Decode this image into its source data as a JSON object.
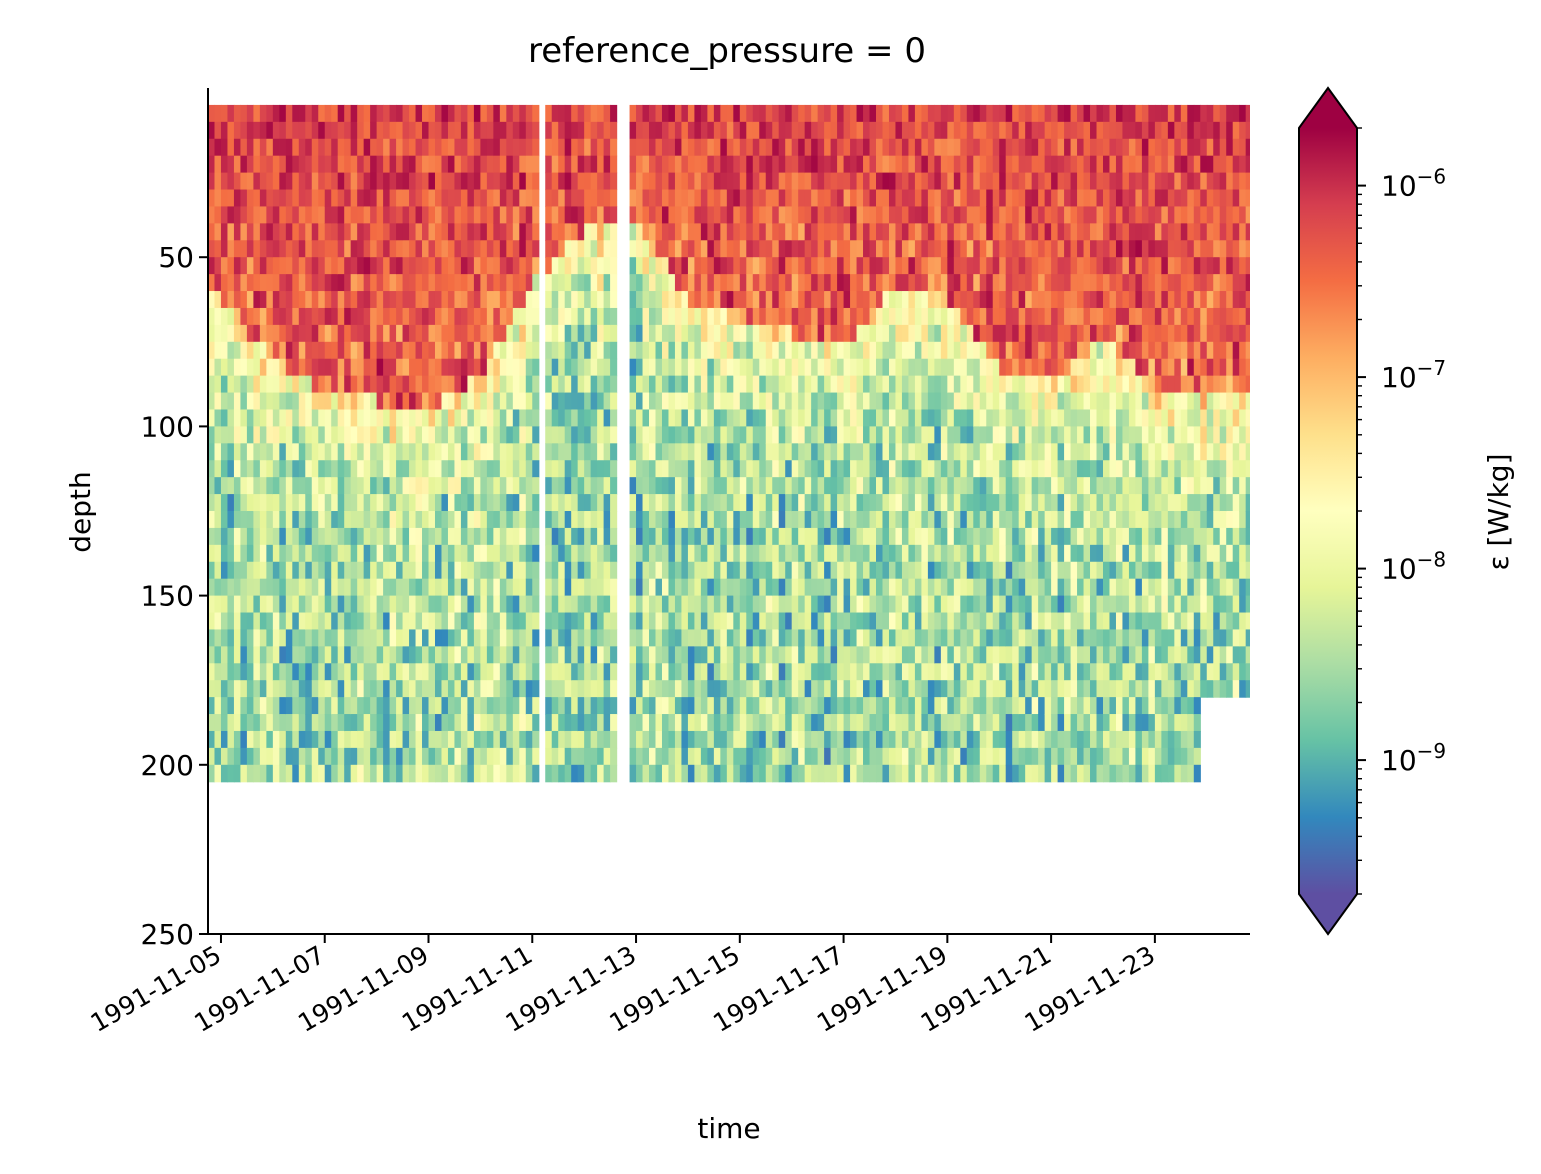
{
  "chart_data": {
    "type": "heatmap",
    "title": "reference_pressure = 0",
    "xlabel": "time",
    "ylabel": "depth",
    "colorbar_label": "ε [W/kg]",
    "colormap": "Spectral_r",
    "colormap_colors": [
      "#5e4fa2",
      "#3288bd",
      "#66c2a5",
      "#abdda4",
      "#e6f598",
      "#ffffbf",
      "#fee08b",
      "#fdae61",
      "#f46d43",
      "#d53e4f",
      "#9e0142"
    ],
    "color_scale": "log",
    "color_range": [
      2e-10,
      2e-06
    ],
    "colorbar_extend": "both",
    "colorbar_ticks": [
      {
        "value": 1e-09,
        "label": "10",
        "exp": "−9"
      },
      {
        "value": 1e-08,
        "label": "10",
        "exp": "−8"
      },
      {
        "value": 1e-07,
        "label": "10",
        "exp": "−7"
      },
      {
        "value": 1e-06,
        "label": "10",
        "exp": "−6"
      }
    ],
    "xlim": [
      "1991-11-04T18:00",
      "1991-11-24T20:00"
    ],
    "x_ticks": [
      "1991-11-05",
      "1991-11-07",
      "1991-11-09",
      "1991-11-11",
      "1991-11-13",
      "1991-11-15",
      "1991-11-17",
      "1991-11-19",
      "1991-11-21",
      "1991-11-23"
    ],
    "ylim": [
      250,
      0
    ],
    "y_inverted": true,
    "y_ticks": [
      50,
      100,
      150,
      200
    ],
    "y_tick_extra": 250,
    "data_top_depth": 5,
    "mixed_layer_depth_m": [
      {
        "date": "1991-11-05",
        "mld": 60
      },
      {
        "date": "1991-11-06",
        "mld": 78
      },
      {
        "date": "1991-11-07",
        "mld": 88
      },
      {
        "date": "1991-11-08",
        "mld": 90
      },
      {
        "date": "1991-11-09",
        "mld": 92
      },
      {
        "date": "1991-11-10",
        "mld": 82
      },
      {
        "date": "1991-11-11",
        "mld": 55
      },
      {
        "date": "1991-11-12",
        "mld": 40
      },
      {
        "date": "1991-11-13",
        "mld": 35
      },
      {
        "date": "1991-11-14",
        "mld": 60
      },
      {
        "date": "1991-11-15",
        "mld": 65
      },
      {
        "date": "1991-11-16",
        "mld": 70
      },
      {
        "date": "1991-11-17",
        "mld": 75
      },
      {
        "date": "1991-11-18",
        "mld": 55
      },
      {
        "date": "1991-11-19",
        "mld": 60
      },
      {
        "date": "1991-11-20",
        "mld": 80
      },
      {
        "date": "1991-11-21",
        "mld": 85
      },
      {
        "date": "1991-11-22",
        "mld": 70
      },
      {
        "date": "1991-11-23",
        "mld": 85
      },
      {
        "date": "1991-11-24",
        "mld": 90
      }
    ],
    "data_gaps": [
      {
        "start": "1991-11-11T03:00",
        "end": "1991-11-11T06:00"
      },
      {
        "start": "1991-11-12T15:00",
        "end": "1991-11-12T21:00"
      }
    ],
    "profile_bottom_depth_m": 205,
    "late_record_bottom_depth_m": 180
  }
}
